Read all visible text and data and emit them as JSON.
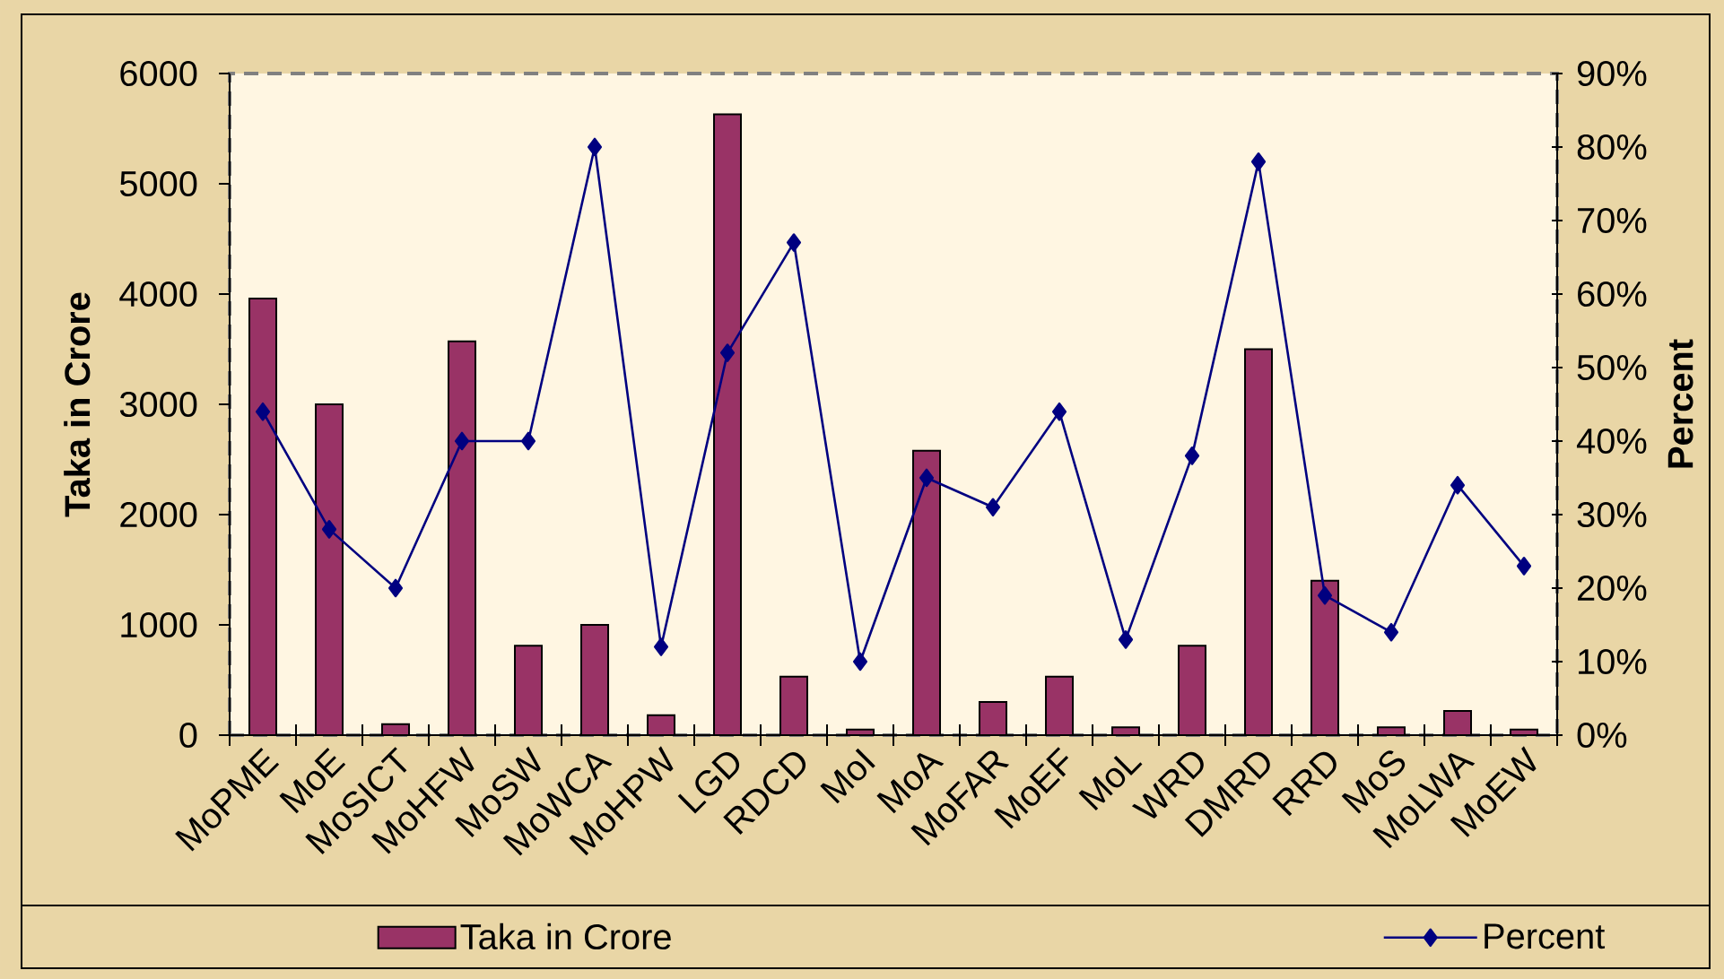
{
  "chart_data": {
    "type": "bar",
    "categories": [
      "MoPME",
      "MoE",
      "MoSICT",
      "MoHFW",
      "MoSW",
      "MoWCA",
      "MoHPW",
      "LGD",
      "RDCD",
      "MoI",
      "MoA",
      "MoFAR",
      "MoEF",
      "MoL",
      "WRD",
      "DMRD",
      "RRD",
      "MoS",
      "MoLWA",
      "MoEW"
    ],
    "series": [
      {
        "name": "Taka in Crore",
        "color": "#993366",
        "values": [
          3960,
          3000,
          100,
          3570,
          810,
          1000,
          180,
          5630,
          530,
          50,
          2580,
          300,
          530,
          70,
          810,
          3500,
          1400,
          70,
          220,
          50
        ]
      },
      {
        "name": "Percent",
        "type": "line",
        "axis": "y2",
        "color": "#000080",
        "values": [
          44,
          28,
          20,
          40,
          40,
          80,
          12,
          52,
          67,
          10,
          35,
          31,
          44,
          13,
          38,
          78,
          19,
          14,
          34,
          23
        ]
      }
    ],
    "ylabel": "Taka in Crore",
    "y2label": "Percent",
    "ylim": [
      0,
      6000
    ],
    "yticks": [
      0,
      1000,
      2000,
      3000,
      4000,
      5000,
      6000
    ],
    "y2lim": [
      0,
      90
    ],
    "y2ticks": [
      {
        "value": 0,
        "label": "0%"
      },
      {
        "value": 10,
        "label": "10%"
      },
      {
        "value": 20,
        "label": "20%"
      },
      {
        "value": 30,
        "label": "30%"
      },
      {
        "value": 40,
        "label": "40%"
      },
      {
        "value": 50,
        "label": "50%"
      },
      {
        "value": 60,
        "label": "60%"
      },
      {
        "value": 70,
        "label": "70%"
      },
      {
        "value": 80,
        "label": "80%"
      },
      {
        "value": 90,
        "label": "90%"
      }
    ],
    "legend": "bottom",
    "marker": "diamond",
    "line_style": "solid",
    "grid": false
  }
}
